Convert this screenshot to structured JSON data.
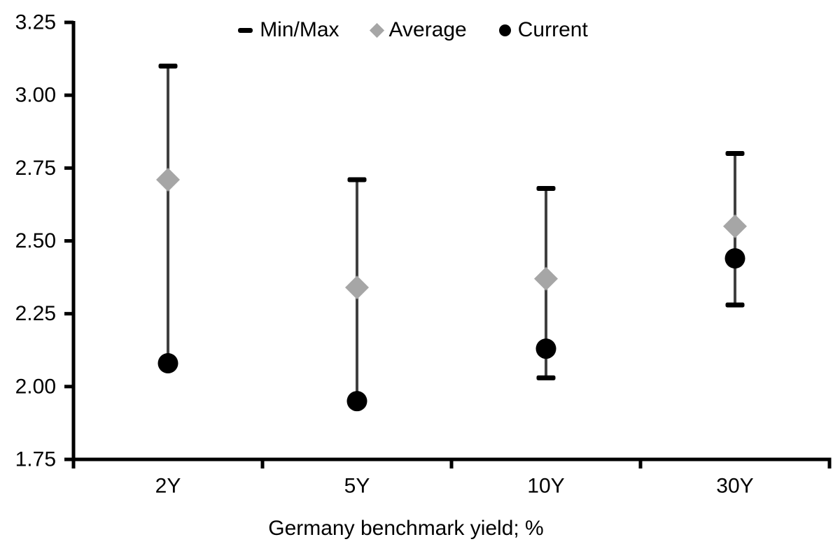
{
  "chart_data": {
    "type": "scatter",
    "title": "",
    "xlabel": "Germany benchmark yield; %",
    "ylabel": "",
    "categories": [
      "2Y",
      "5Y",
      "10Y",
      "30Y"
    ],
    "ylim": [
      1.75,
      3.25
    ],
    "yticks": [
      "1.75",
      "2.00",
      "2.25",
      "2.50",
      "2.75",
      "3.00",
      "3.25"
    ],
    "grid": false,
    "legend_position": "top-center",
    "series": [
      {
        "name": "Min/Max",
        "marker": "dash",
        "role": "range",
        "min": [
          2.08,
          1.95,
          2.03,
          2.28
        ],
        "max": [
          3.1,
          2.71,
          2.68,
          2.8
        ]
      },
      {
        "name": "Average",
        "marker": "diamond",
        "role": "point",
        "values": [
          2.71,
          2.34,
          2.37,
          2.55
        ]
      },
      {
        "name": "Current",
        "marker": "circle",
        "role": "point",
        "values": [
          2.08,
          1.95,
          2.13,
          2.44
        ]
      }
    ],
    "colors": {
      "range_line": "#404040",
      "range_cap": "#000000",
      "average": "#a6a6a6",
      "current": "#000000",
      "axis": "#000000",
      "text": "#000000"
    }
  }
}
